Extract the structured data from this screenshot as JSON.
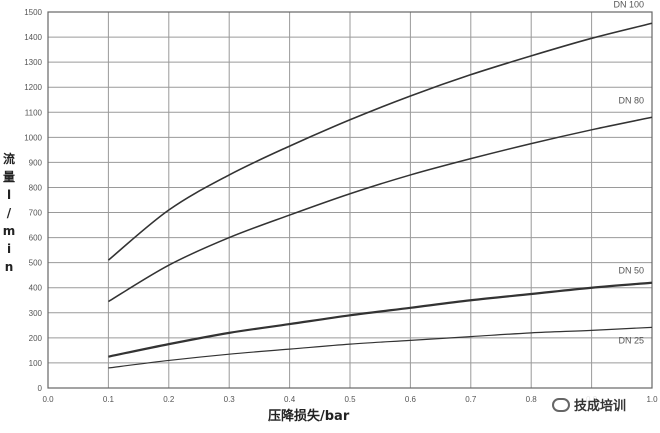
{
  "chart_data": {
    "type": "line",
    "xlabel": "压降损失/bar",
    "ylabel": "流量 l/min",
    "xlim": [
      0.0,
      1.0
    ],
    "ylim": [
      0,
      1500
    ],
    "x_ticks": [
      "0.0",
      "0.1",
      "0.2",
      "0.3",
      "0.4",
      "0.5",
      "0.6",
      "0.7",
      "0.8",
      "0.9",
      "1.0"
    ],
    "y_ticks": [
      "0",
      "100",
      "200",
      "300",
      "400",
      "500",
      "600",
      "700",
      "800",
      "900",
      "1000",
      "1100",
      "1200",
      "1300",
      "1400",
      "1500"
    ],
    "grid": true,
    "series": [
      {
        "name": "DN 100",
        "x": [
          0.1,
          0.2,
          0.3,
          0.4,
          0.5,
          0.6,
          0.7,
          0.8,
          0.9,
          1.0
        ],
        "y": [
          510,
          710,
          850,
          965,
          1070,
          1165,
          1250,
          1325,
          1395,
          1455
        ]
      },
      {
        "name": "DN 80",
        "x": [
          0.1,
          0.2,
          0.3,
          0.4,
          0.5,
          0.6,
          0.7,
          0.8,
          0.9,
          1.0
        ],
        "y": [
          345,
          490,
          600,
          690,
          775,
          850,
          915,
          975,
          1030,
          1080
        ]
      },
      {
        "name": "DN 50",
        "x": [
          0.1,
          0.2,
          0.3,
          0.4,
          0.5,
          0.6,
          0.7,
          0.8,
          0.9,
          1.0
        ],
        "y": [
          125,
          175,
          220,
          255,
          290,
          320,
          350,
          375,
          400,
          420
        ]
      },
      {
        "name": "DN 25",
        "x": [
          0.1,
          0.2,
          0.3,
          0.4,
          0.5,
          0.6,
          0.7,
          0.8,
          0.9,
          1.0
        ],
        "y": [
          80,
          110,
          135,
          155,
          175,
          190,
          205,
          220,
          230,
          242
        ]
      }
    ]
  },
  "ylabel_chars": [
    "流",
    "量",
    "l",
    "/",
    "m",
    "i",
    "n"
  ],
  "watermark": {
    "icon": "wechat-icon",
    "text": "技成培训"
  },
  "colors": {
    "line": "#333333",
    "grid": "#9a9a9a",
    "axis": "#666666"
  }
}
